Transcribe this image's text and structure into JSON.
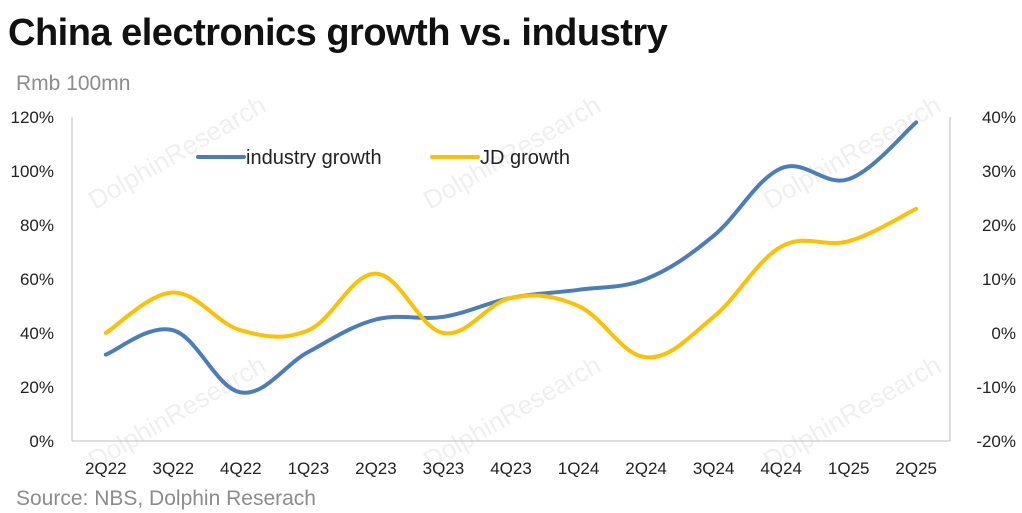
{
  "title": "China electronics growth vs. industry",
  "unit_label": "Rmb 100mn",
  "source": "Source: NBS, Dolphin Reserach",
  "watermark": "DolphinResearch",
  "chart_data": {
    "type": "line",
    "categories": [
      "2Q22",
      "3Q22",
      "4Q22",
      "1Q23",
      "2Q23",
      "3Q23",
      "4Q23",
      "1Q24",
      "2Q24",
      "3Q24",
      "4Q24",
      "1Q25",
      "2Q25"
    ],
    "series": [
      {
        "name": "industry growth",
        "axis": "left",
        "color": "#4A7EBB",
        "values": [
          32,
          41,
          18,
          33,
          45,
          46,
          53,
          56,
          60,
          76,
          101,
          97,
          118
        ]
      },
      {
        "name": "JD growth",
        "axis": "right",
        "color": "#FFC000",
        "values": [
          0,
          7.5,
          0.5,
          0.5,
          11,
          0,
          6.5,
          5,
          -4.5,
          3,
          16,
          17,
          23
        ]
      }
    ],
    "y_left": {
      "ylim": [
        0,
        120
      ],
      "step": 20,
      "tick_labels": [
        "0%",
        "20%",
        "40%",
        "60%",
        "80%",
        "100%",
        "120%"
      ]
    },
    "y_right": {
      "ylim": [
        -20,
        40
      ],
      "step": 10,
      "tick_labels": [
        "-20%",
        "-10%",
        "0%",
        "10%",
        "20%",
        "30%",
        "40%"
      ]
    },
    "grid": false,
    "legend_position": "top-left"
  }
}
